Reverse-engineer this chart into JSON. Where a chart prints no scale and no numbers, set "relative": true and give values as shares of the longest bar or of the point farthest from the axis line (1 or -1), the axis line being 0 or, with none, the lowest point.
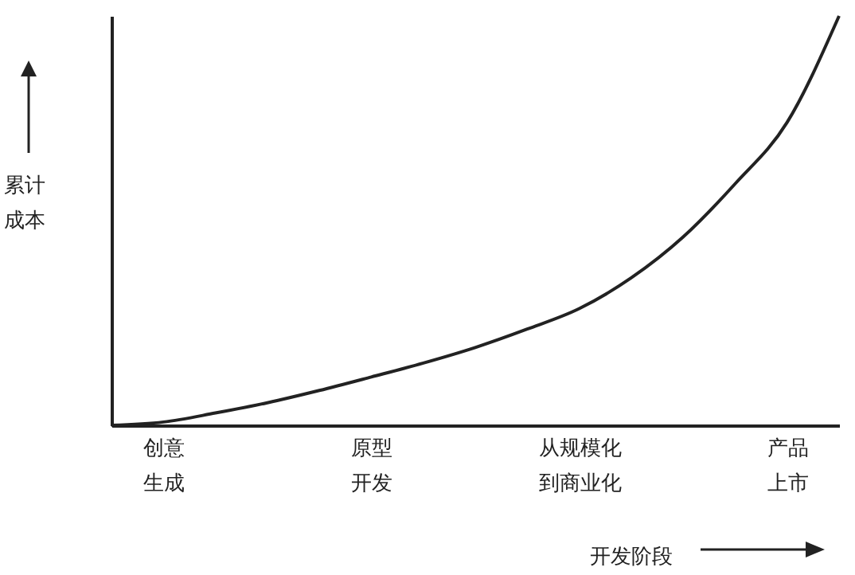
{
  "chart_data": {
    "type": "line",
    "relative": true,
    "xlabel": "开发阶段",
    "ylabel": "累计成本",
    "categories": [
      null,
      "创意生成",
      null,
      null,
      null,
      "原型开发",
      null,
      null,
      null,
      "从规模化到商业化",
      null,
      null,
      null,
      "产品上市",
      null
    ],
    "series": [
      {
        "color": "#222222",
        "values": [
          0,
          0.008,
          0.03,
          0.055,
          0.085,
          0.118,
          0.152,
          0.19,
          0.235,
          0.285,
          0.36,
          0.46,
          0.59,
          0.74,
          1
        ]
      }
    ]
  }
}
